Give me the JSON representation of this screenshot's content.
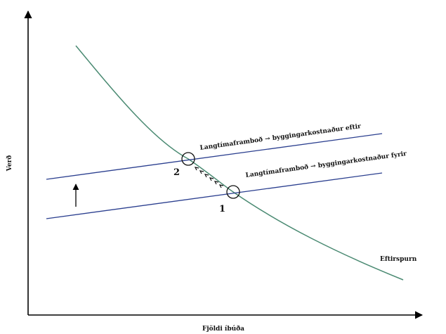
{
  "axes": {
    "y_label": "Verð",
    "x_label": "Fjöldi íbúða"
  },
  "curves": {
    "supply_after_label": "Langtímaframboð → byggingarkostnaður eftir",
    "supply_before_label": "Langtímaframboð → byggingarkostnaður fyrir",
    "demand_label": "Eftirspurn"
  },
  "points": {
    "p1": "1",
    "p2": "2"
  },
  "colors": {
    "axis": "#000000",
    "supply": "#2b3f8f",
    "demand": "#4a8a72",
    "marker": "#111111"
  }
}
